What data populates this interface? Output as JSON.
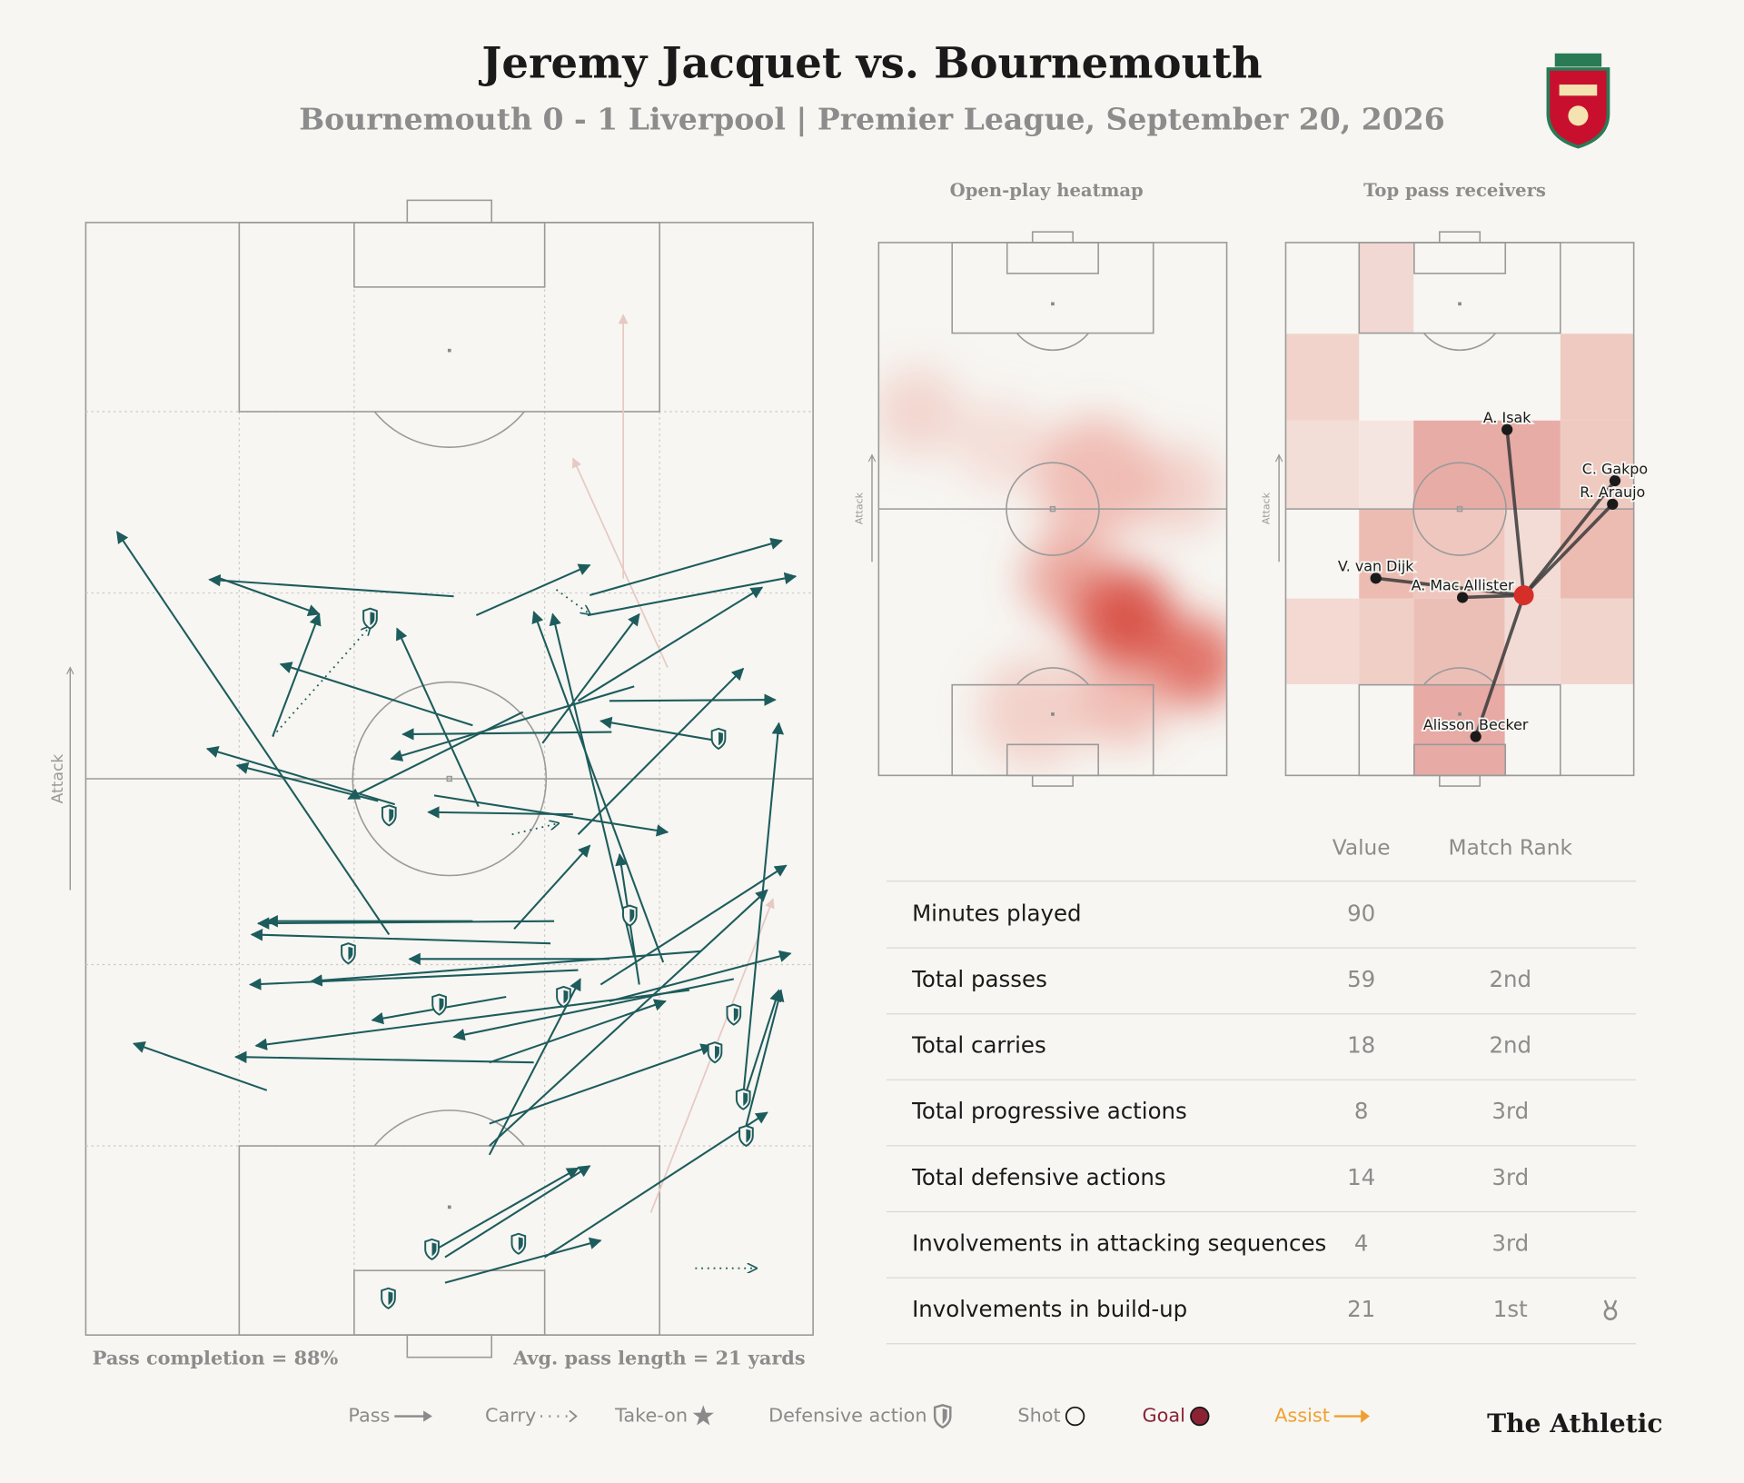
{
  "header": {
    "title": "Jeremy Jacquet vs. Bournemouth",
    "subtitle": "Bournemouth 0 - 1 Liverpool | Premier League, September 20, 2026"
  },
  "pass_map": {
    "direction_label": "Attack",
    "pass_completion": "Pass completion = 88%",
    "avg_pass_length": "Avg. pass length = 21 yards",
    "passes": [
      [
        50.6,
        66.4,
        17.0,
        67.9
      ],
      [
        18.5,
        68.0,
        32.1,
        64.8
      ],
      [
        41.7,
        36.0,
        4.3,
        72.2
      ],
      [
        69.3,
        66.5,
        95.7,
        71.4
      ],
      [
        69.0,
        64.7,
        97.6,
        68.2
      ],
      [
        53.7,
        64.7,
        69.3,
        69.2
      ],
      [
        53.2,
        54.8,
        26.8,
        60.3
      ],
      [
        54.0,
        47.5,
        42.8,
        63.5
      ],
      [
        62.8,
        53.2,
        76.1,
        64.8
      ],
      [
        67.7,
        57.0,
        93.0,
        67.2
      ],
      [
        72.3,
        54.2,
        43.6,
        54.0
      ],
      [
        75.4,
        58.3,
        42.0,
        51.8
      ],
      [
        72.0,
        57.0,
        94.8,
        57.1
      ],
      [
        86.1,
        53.5,
        70.8,
        55.2
      ],
      [
        42.5,
        47.7,
        16.7,
        52.7
      ],
      [
        40.2,
        48.0,
        20.8,
        51.2
      ],
      [
        60.1,
        56.0,
        36.1,
        48.2
      ],
      [
        67.0,
        46.8,
        47.1,
        47.0
      ],
      [
        47.9,
        48.5,
        80.0,
        45.2
      ],
      [
        67.7,
        45.0,
        90.4,
        59.9
      ],
      [
        79.4,
        33.5,
        61.6,
        65.0
      ],
      [
        75.4,
        34.0,
        64.2,
        64.8
      ],
      [
        64.4,
        37.2,
        23.7,
        37.0
      ],
      [
        53.2,
        37.2,
        24.9,
        37.2
      ],
      [
        63.9,
        35.2,
        22.8,
        36.0
      ],
      [
        72.0,
        33.8,
        44.5,
        33.8
      ],
      [
        84.6,
        34.5,
        31.0,
        31.8
      ],
      [
        58.9,
        36.5,
        69.3,
        44.0
      ],
      [
        70.8,
        31.5,
        96.3,
        42.2
      ],
      [
        76.1,
        31.5,
        73.4,
        43.2
      ],
      [
        67.7,
        32.8,
        22.6,
        31.5
      ],
      [
        89.1,
        32.0,
        50.6,
        26.8
      ],
      [
        57.8,
        30.4,
        39.4,
        28.3
      ],
      [
        83.0,
        31.0,
        23.4,
        26.0
      ],
      [
        72.0,
        30.0,
        96.9,
        34.3
      ],
      [
        55.5,
        24.5,
        79.7,
        30.0
      ],
      [
        61.6,
        24.5,
        20.6,
        25.0
      ],
      [
        24.9,
        22.0,
        6.6,
        26.2
      ],
      [
        90.4,
        21.5,
        95.3,
        55.0
      ],
      [
        90.4,
        21.0,
        95.3,
        31.0
      ],
      [
        55.5,
        16.2,
        68.0,
        32.0
      ],
      [
        55.5,
        17.0,
        93.7,
        40.0
      ],
      [
        90.4,
        17.8,
        95.6,
        31.0
      ],
      [
        49.4,
        7.0,
        69.3,
        15.2
      ],
      [
        47.6,
        7.5,
        67.7,
        15.0
      ],
      [
        63.1,
        7.0,
        93.7,
        20.0
      ],
      [
        49.4,
        4.7,
        70.8,
        8.5
      ],
      [
        55.5,
        19.0,
        86.1,
        26.0
      ],
      [
        25.7,
        53.8,
        32.1,
        64.8
      ]
    ],
    "unsuccessful_passes": [
      [
        73.9,
        68.0,
        73.9,
        91.7
      ],
      [
        80.0,
        60.0,
        67.0,
        78.8
      ],
      [
        77.7,
        11.0,
        94.5,
        39.2
      ]
    ],
    "carries": [
      [
        25.7,
        53.8,
        39.1,
        63.7
      ],
      [
        58.6,
        45.0,
        65.0,
        46.0
      ],
      [
        83.8,
        6.0,
        92.2,
        6.0
      ],
      [
        64.7,
        67.0,
        69.3,
        64.8
      ]
    ],
    "defensive_actions": [
      [
        39.1,
        64.4
      ],
      [
        87.0,
        53.6
      ],
      [
        41.7,
        46.7
      ],
      [
        74.8,
        37.7
      ],
      [
        36.1,
        34.3
      ],
      [
        48.6,
        29.7
      ],
      [
        65.7,
        30.4
      ],
      [
        89.1,
        28.8
      ],
      [
        86.5,
        25.4
      ],
      [
        90.4,
        21.2
      ],
      [
        90.8,
        17.9
      ],
      [
        47.6,
        7.7
      ],
      [
        59.5,
        8.2
      ],
      [
        41.6,
        3.3
      ]
    ]
  },
  "heatmap": {
    "title": "Open-play heatmap",
    "direction_label": "Attack"
  },
  "pass_receivers": {
    "title": "Top pass receivers",
    "direction_label": "Attack",
    "player_position": [
      68.4,
      33.8
    ],
    "receivers": [
      {
        "name": "A. Isak",
        "x": 63.6,
        "y": 64.9
      },
      {
        "name": "C. Gakpo",
        "x": 94.6,
        "y": 55.3
      },
      {
        "name": "R. Araujo",
        "x": 93.9,
        "y": 50.9
      },
      {
        "name": "V. van Dijk",
        "x": 25.9,
        "y": 37.0
      },
      {
        "name": "A. Mac Allister",
        "x": 50.8,
        "y": 33.4
      },
      {
        "name": "Alisson Becker",
        "x": 54.6,
        "y": 7.3
      }
    ]
  },
  "stats_table": {
    "columns": [
      "Value",
      "Match Rank"
    ],
    "rows": [
      {
        "label": "Minutes played",
        "value": 90
      },
      {
        "label": "Total passes",
        "value": 59,
        "rank": "2nd"
      },
      {
        "label": "Total carries",
        "value": 18,
        "rank": "2nd"
      },
      {
        "label": "Total progressive actions",
        "value": 8,
        "rank": "3rd"
      },
      {
        "label": "Total defensive actions",
        "value": 14,
        "rank": "3rd"
      },
      {
        "label": "Involvements in attacking sequences",
        "value": 4,
        "rank": "3rd"
      },
      {
        "label": "Involvements in build-up",
        "value": 21,
        "rank": "1st",
        "medal": true
      }
    ]
  },
  "legend": [
    {
      "label": "Pass",
      "color": "#8a8a8a"
    },
    {
      "label": "Carry",
      "color": "#8a8a8a"
    },
    {
      "label": "Take-on",
      "color": "#8a8a8a"
    },
    {
      "label": "Defensive action",
      "color": "#8a8a8a"
    },
    {
      "label": "Shot",
      "color": "#8a8a8a"
    },
    {
      "label": "Goal",
      "color": "#8b2335"
    },
    {
      "label": "Assist",
      "color": "#f0a030"
    }
  ],
  "brand": "The Athletic"
}
